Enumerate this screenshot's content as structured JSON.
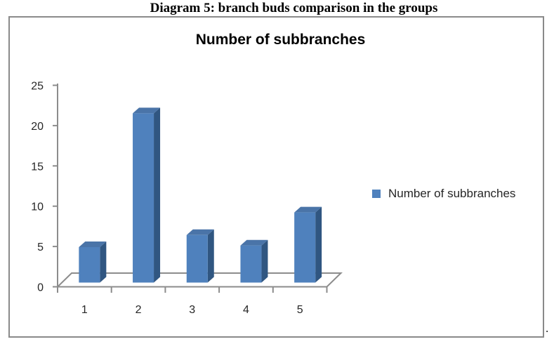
{
  "caption": "Diagram 5: branch buds comparison in the groups",
  "trailing_period": ".",
  "chart_data": {
    "type": "bar",
    "variant": "3d-column",
    "title": "Number of subbranches",
    "categories": [
      "1",
      "2",
      "3",
      "4",
      "5"
    ],
    "series": [
      {
        "name": "Number of subbranches",
        "values": [
          4.4,
          21,
          5.9,
          4.6,
          8.7
        ]
      }
    ],
    "xlabel": "",
    "ylabel": "",
    "ylim": [
      0,
      25
    ],
    "yticks": [
      0,
      5,
      10,
      15,
      20,
      25
    ],
    "grid": false,
    "legend": {
      "position": "right",
      "label": "Number of subbranches"
    },
    "colors": {
      "bar_front": "#4f81bd",
      "bar_top": "#4a74a8",
      "bar_side": "#305681",
      "axis": "#8c8c8c",
      "border": "#8a8a8a",
      "tick_text": "#262626",
      "title_text": "#000000"
    }
  }
}
